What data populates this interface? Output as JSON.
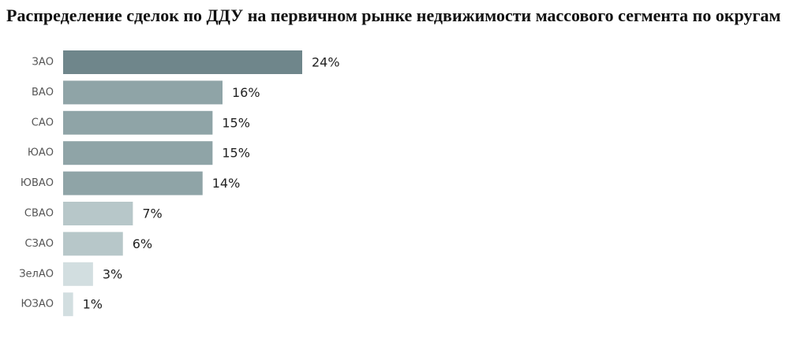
{
  "chart_data": {
    "type": "bar",
    "orientation": "horizontal",
    "title": "Распределение сделок по ДДУ на первичном рынке недвижимости массового сегмента по округам",
    "categories": [
      "ЗАО",
      "ВАО",
      "САО",
      "ЮАО",
      "ЮВАО",
      "СВАО",
      "СЗАО",
      "ЗелАО",
      "ЮЗАО"
    ],
    "values": [
      24,
      16,
      15,
      15,
      14,
      7,
      6,
      3,
      1
    ],
    "value_labels": [
      "24%",
      "16%",
      "15%",
      "15%",
      "14%",
      "7%",
      "6%",
      "3%",
      "1%"
    ],
    "colors": [
      "#6f868b",
      "#8fa4a7",
      "#8fa4a7",
      "#8fa4a7",
      "#8fa4a7",
      "#b7c7c9",
      "#b7c7c9",
      "#d2dee0",
      "#d2dee0"
    ]
  }
}
